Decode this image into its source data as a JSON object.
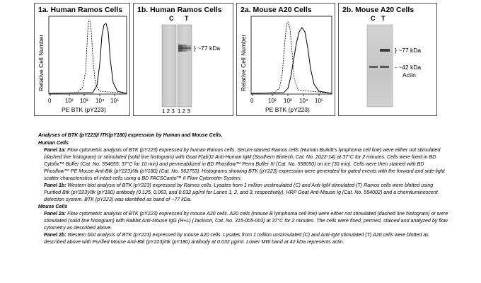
{
  "panels": {
    "p1a": {
      "title": "1a.  Human Ramos Cells",
      "ylabel": "Relative Cell Number",
      "xlabel": "PE BTK (pY223)",
      "ticks": [
        "0",
        "10²",
        "10³",
        "10⁴",
        "10⁵"
      ]
    },
    "p1b": {
      "title": "1b. Human Ramos Cells",
      "lane_c": "C",
      "lane_t": "T",
      "band_label": "} ~77 kDa",
      "lane_numbers_c": "1 2 3",
      "lane_numbers_t": "1 2 3"
    },
    "p2a": {
      "title": "2a. Mouse A20 Cells",
      "ylabel": "Relative Cell Number",
      "xlabel": "PE BTK (pY223)",
      "ticks": [
        "0",
        "10²",
        "10³",
        "10⁴",
        "10⁵"
      ]
    },
    "p2b": {
      "title": "2b. Mouse A20 Cells",
      "lane_c": "C",
      "lane_t": "T",
      "band1_label": "} ~77 kDa",
      "band2_label": "- ~42 kDa",
      "band2_sub": "Actin"
    }
  },
  "caption": {
    "title": "Analyses of BTK (pY223)/ ITK(pY180) expression by Human and Mouse Cells.",
    "human_heading": "Human Cells",
    "panel1a_label": "Panel 1a:",
    "panel1a_text": " Flow cytometric analysis of BTK (pY223) expressed by human Ramos cells. Serum-starved Ramos cells (Human Burkitt's lymphoma cell line) were either not stimulated (dashed line histogram) or stimulated (solid line histogram) with Goat F(ab')2 Anti-Human IgM (Southern Biotech, Cat. No. 2022-14) at 37°C for 2 minutes. Cells were fixed in BD Cytofix™ Buffer (Cat. No. 554655; 37°C for 10 min) and permeabilized in BD Phosflow™ Perm Buffer III (Cat. No. 558050) on ice (30 min). Cells were then stained with BD Phosflow™ PE Mouse Anti-Btk (pY223)/Itk (pY180) (Cat. No. 562753). Histograms showing BTK (pY223) expression were generated for gated events with the forward and side-light scatter characteristics of intact cells using a BD FACSCanto™ II Flow Cytometer System.",
    "panel1b_label": "Panel 1b:",
    "panel1b_text": " Western blot analysis of BTK (pY223) expressed by Ramos cells. Lysates from 1 million unstimulated (C) and Anti-IgM stimulated (T) Ramos cells were blotted using Purified Btk (pY223)/Itk (pY180) antibody (0.125, 0.063, and 0.032 µg/ml for Lanes 1, 2, and 3, respectively), HRP Goat Anti-Mouse Ig (Cat. No. 554002) and a chemiluminescent detection system. BTK (pY223) was identified as band of ~77 kDa.",
    "mouse_heading": "Mouse Cells",
    "panel2a_label": "Panel 2a:",
    "panel2a_text": " Flow cytometric analysis of BTK (pY223) expressed by mouse A20 cells. A20 cells (mouse B lymphoma cell line) were either not stimulated (dashed line histogram) or were stimulated (solid line histogram) with Rabbit Anti-Mouse IgG (H+L) (Jackson, Cat. No. 315-005-003) at 37°C for 2 minutes. The cells were fixed, permed, stained and analyzed by flow cytometry as described above.",
    "panel2b_label": "Panel 2b:",
    "panel2b_text": " Western blot analysis of BTK (pY223) expressed by mouse A20 cells. Lysates from 1 million unstimulated (C) and Anti-IgM stimulated (T) A20 cells were blotted as described above with Purified Mouse Anti-Btk (pY223)/Itk (pY180) antibody at 0.032 µg/ml. Lower MW band at 42 kDa represents actin."
  }
}
